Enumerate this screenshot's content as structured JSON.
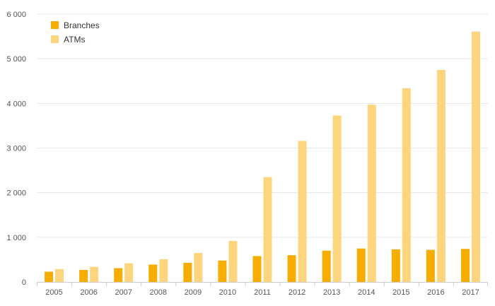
{
  "chart_data": {
    "type": "bar",
    "categories": [
      "2005",
      "2006",
      "2007",
      "2008",
      "2009",
      "2010",
      "2011",
      "2012",
      "2013",
      "2014",
      "2015",
      "2016",
      "2017"
    ],
    "series": [
      {
        "name": "Branches",
        "color": "#f7ad00",
        "values": [
          230,
          270,
          310,
          390,
          430,
          480,
          580,
          600,
          700,
          750,
          730,
          720,
          740
        ]
      },
      {
        "name": "ATMs",
        "color": "#fcd57e",
        "values": [
          290,
          340,
          420,
          510,
          650,
          920,
          2350,
          3160,
          3730,
          3970,
          4340,
          4750,
          5610
        ]
      }
    ],
    "yticks": [
      0,
      1000,
      2000,
      3000,
      4000,
      5000,
      6000
    ],
    "ytick_labels": [
      "0",
      "1 000",
      "2 000",
      "3 000",
      "4 000",
      "5 000",
      "6 000"
    ],
    "ylim": [
      0,
      6000
    ],
    "grid": true,
    "legend_position": "top-left",
    "title": "",
    "xlabel": "",
    "ylabel": ""
  }
}
